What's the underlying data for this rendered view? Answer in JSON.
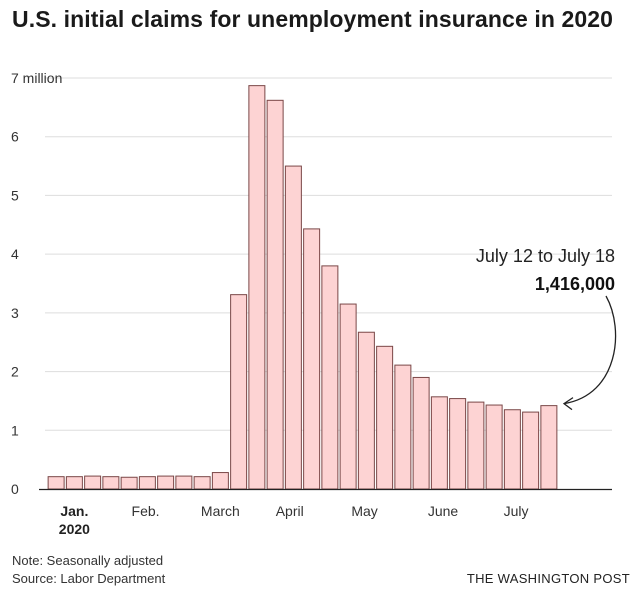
{
  "title": "U.S. initial claims for unemployment insurance in 2020",
  "footer": {
    "note": "Note: Seasonally adjusted",
    "source": "Source: Labor Department",
    "credit": "THE WASHINGTON POST"
  },
  "chart_data": {
    "type": "bar",
    "title": "U.S. initial claims for unemployment insurance in 2020",
    "xlabel": "",
    "ylabel": "",
    "unit": "million",
    "ylim": [
      0,
      7
    ],
    "yticks": [
      {
        "value": 0,
        "label": "0"
      },
      {
        "value": 1,
        "label": "1"
      },
      {
        "value": 2,
        "label": "2"
      },
      {
        "value": 3,
        "label": "3"
      },
      {
        "value": 4,
        "label": "4"
      },
      {
        "value": 5,
        "label": "5"
      },
      {
        "value": 6,
        "label": "6"
      },
      {
        "value": 7,
        "label": "7 million"
      }
    ],
    "grid": true,
    "values": [
      0.21,
      0.21,
      0.22,
      0.21,
      0.2,
      0.21,
      0.22,
      0.22,
      0.21,
      0.28,
      3.31,
      6.87,
      6.62,
      5.5,
      4.43,
      3.8,
      3.15,
      2.67,
      2.43,
      2.11,
      1.9,
      1.57,
      1.54,
      1.48,
      1.43,
      1.35,
      1.31,
      1.42
    ],
    "month_labels": [
      {
        "label": "Jan.",
        "sublabel": "2020",
        "bold": true,
        "bar_index": 1
      },
      {
        "label": "Feb.",
        "bold": false,
        "bar_index": 4.9
      },
      {
        "label": "March",
        "bold": false,
        "bar_index": 9
      },
      {
        "label": "April",
        "bold": false,
        "bar_index": 12.8
      },
      {
        "label": "May",
        "bold": false,
        "bar_index": 16.9
      },
      {
        "label": "June",
        "bold": false,
        "bar_index": 21.2
      },
      {
        "label": "July",
        "bold": false,
        "bar_index": 25.2
      }
    ],
    "annotation": {
      "line1": "July 12 to July 18",
      "line2": "1,416,000",
      "bar_index": 27
    }
  }
}
